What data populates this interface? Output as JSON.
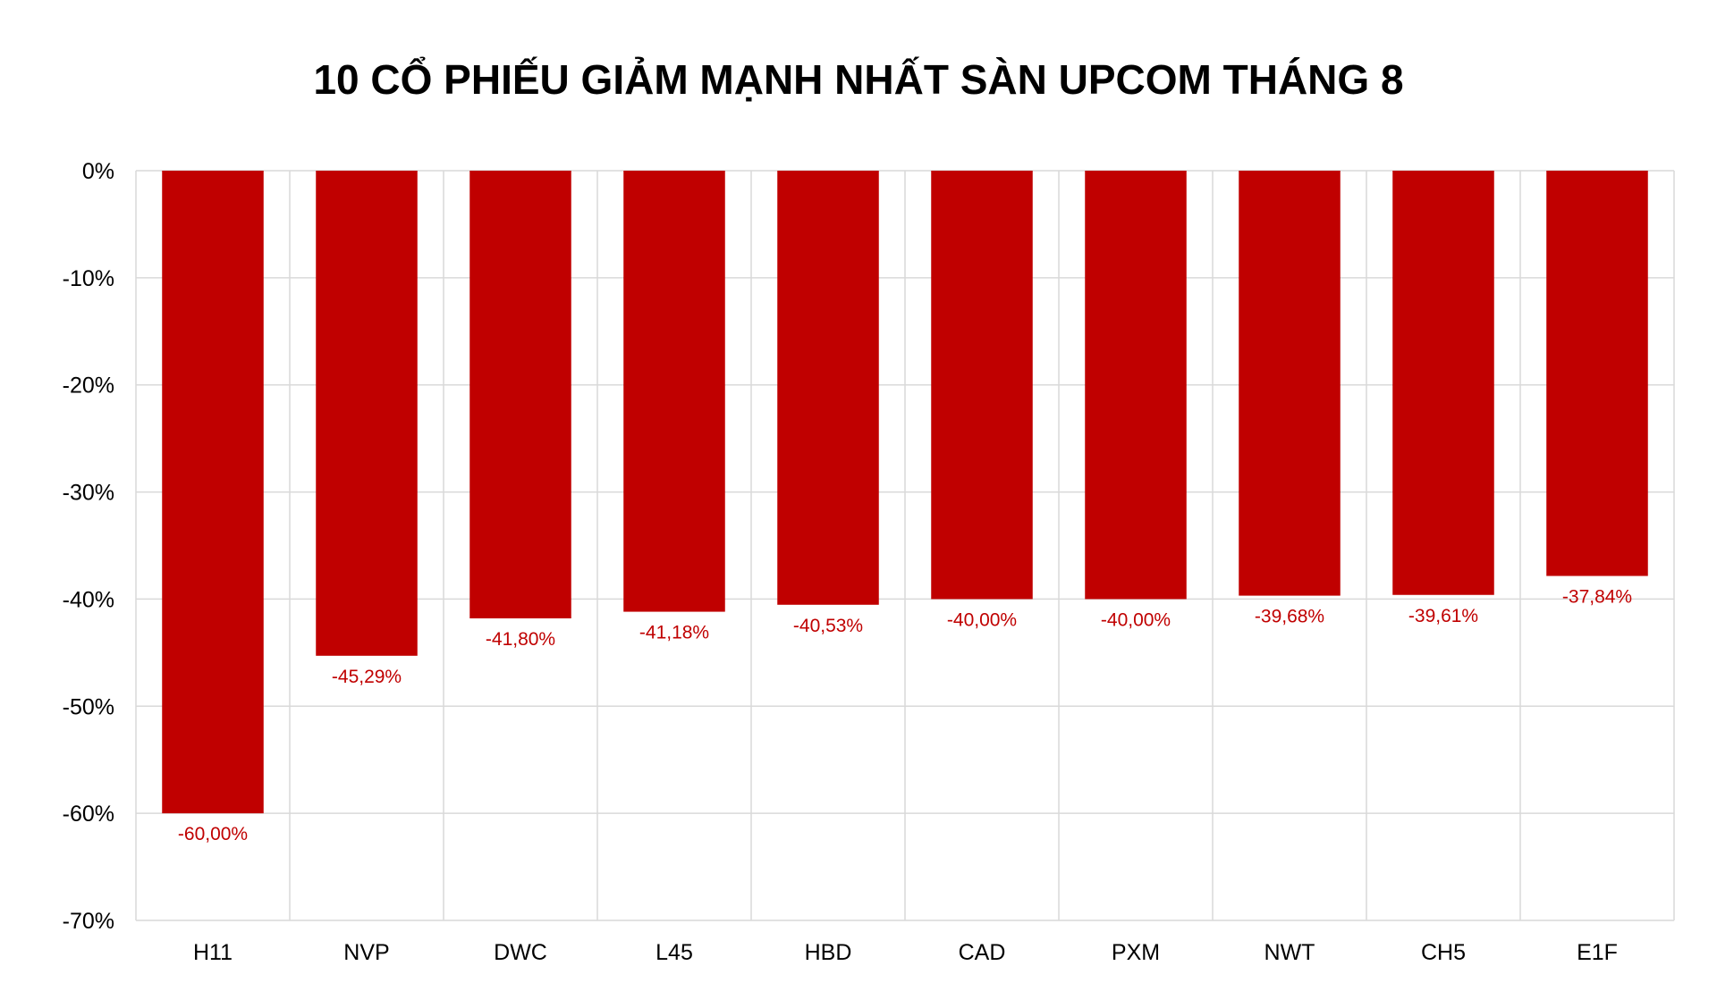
{
  "colors": {
    "bar": "#C00000",
    "data_label": "#C00000",
    "grid": "#D9D9D9",
    "axis_text": "#000000"
  },
  "chart_data": {
    "type": "bar",
    "title": "10 CỔ PHIẾU GIẢM MẠNH NHẤT SÀN UPCOM THÁNG 8",
    "xlabel": "",
    "ylabel": "",
    "categories": [
      "H11",
      "NVP",
      "DWC",
      "L45",
      "HBD",
      "CAD",
      "PXM",
      "NWT",
      "CH5",
      "E1F"
    ],
    "values": [
      -60.0,
      -45.29,
      -41.8,
      -41.18,
      -40.53,
      -40.0,
      -40.0,
      -39.68,
      -39.61,
      -37.84
    ],
    "data_labels": [
      "-60,00%",
      "-45,29%",
      "-41,80%",
      "-41,18%",
      "-40,53%",
      "-40,00%",
      "-40,00%",
      "-39,68%",
      "-39,61%",
      "-37,84%"
    ],
    "ylim": [
      -70,
      0
    ],
    "yticks": [
      0,
      -10,
      -20,
      -30,
      -40,
      -50,
      -60,
      -70
    ],
    "ytick_labels": [
      "0%",
      "-10%",
      "-20%",
      "-30%",
      "-40%",
      "-50%",
      "-60%",
      "-70%"
    ],
    "grid": true,
    "legend": "none"
  }
}
